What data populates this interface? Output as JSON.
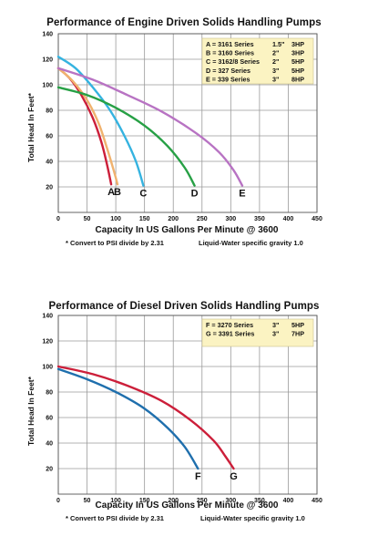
{
  "chart_data": [
    {
      "type": "line",
      "title": "Performance of Engine Driven Solids Handling Pumps",
      "xlabel": "Capacity In US Gallons Per Minute @ 3600",
      "ylabel": "Total Head In Feet*",
      "xlim": [
        0,
        450
      ],
      "ylim": [
        0,
        140
      ],
      "x_ticks": [
        "0",
        "50",
        "100",
        "150",
        "200",
        "250",
        "300",
        "350",
        "400",
        "450"
      ],
      "y_ticks": [
        "20",
        "40",
        "60",
        "80",
        "100",
        "120",
        "140"
      ],
      "grid": true,
      "legend_position": "top-right",
      "legend": [
        {
          "letter": "A",
          "series": "3161 Series",
          "size": "1.5\"",
          "hp": "3HP"
        },
        {
          "letter": "B",
          "series": "3160 Series",
          "size": "2\"",
          "hp": "3HP"
        },
        {
          "letter": "C",
          "series": "3162/8 Series",
          "size": "2\"",
          "hp": "5HP"
        },
        {
          "letter": "D",
          "series": "327 Series",
          "size": "3\"",
          "hp": "5HP"
        },
        {
          "letter": "E",
          "series": "339 Series",
          "size": "3\"",
          "hp": "8HP"
        }
      ],
      "series": [
        {
          "name": "A",
          "color": "#cc1f3a",
          "points": [
            [
              0,
              113
            ],
            [
              20,
              105
            ],
            [
              40,
              92
            ],
            [
              60,
              74
            ],
            [
              75,
              55
            ],
            [
              85,
              37
            ],
            [
              92,
              22
            ]
          ]
        },
        {
          "name": "B",
          "color": "#f0b26e",
          "points": [
            [
              0,
              113
            ],
            [
              25,
              103
            ],
            [
              50,
              88
            ],
            [
              70,
              70
            ],
            [
              85,
              50
            ],
            [
              97,
              32
            ],
            [
              103,
              22
            ]
          ]
        },
        {
          "name": "C",
          "color": "#35b3e0",
          "points": [
            [
              0,
              122
            ],
            [
              30,
              113
            ],
            [
              60,
              98
            ],
            [
              90,
              80
            ],
            [
              115,
              60
            ],
            [
              135,
              40
            ],
            [
              148,
              21
            ]
          ]
        },
        {
          "name": "D",
          "color": "#27a045",
          "points": [
            [
              0,
              98
            ],
            [
              50,
              92
            ],
            [
              100,
              82
            ],
            [
              150,
              68
            ],
            [
              190,
              52
            ],
            [
              220,
              35
            ],
            [
              237,
              21
            ]
          ]
        },
        {
          "name": "E",
          "color": "#b873c3",
          "points": [
            [
              0,
              113
            ],
            [
              60,
              104
            ],
            [
              120,
              92
            ],
            [
              180,
              79
            ],
            [
              240,
              62
            ],
            [
              280,
              47
            ],
            [
              305,
              33
            ],
            [
              320,
              21
            ]
          ]
        }
      ],
      "curve_labels": [
        "A",
        "B",
        "C",
        "D",
        "E"
      ],
      "footnotes": [
        "* Convert to PSI divide by 2.31",
        "Liquid-Water specific gravity 1.0"
      ]
    },
    {
      "type": "line",
      "title": "Performance of Diesel Driven Solids Handling Pumps",
      "xlabel": "Capacity In US Gallons Per Minute @ 3600",
      "ylabel": "Total Head In Feet*",
      "xlim": [
        0,
        450
      ],
      "ylim": [
        0,
        140
      ],
      "x_ticks": [
        "0",
        "50",
        "100",
        "150",
        "200",
        "250",
        "300",
        "350",
        "400",
        "450"
      ],
      "y_ticks": [
        "20",
        "40",
        "60",
        "80",
        "100",
        "120",
        "140"
      ],
      "grid": true,
      "legend_position": "top-right",
      "legend": [
        {
          "letter": "F",
          "series": "3270 Series",
          "size": "3\"",
          "hp": "5HP"
        },
        {
          "letter": "G",
          "series": "3391 Series",
          "size": "3\"",
          "hp": "7HP"
        }
      ],
      "series": [
        {
          "name": "F",
          "color": "#1f6fad",
          "points": [
            [
              0,
              98
            ],
            [
              50,
              90
            ],
            [
              100,
              80
            ],
            [
              150,
              67
            ],
            [
              190,
              52
            ],
            [
              220,
              37
            ],
            [
              243,
              20
            ]
          ]
        },
        {
          "name": "G",
          "color": "#cc1f3a",
          "points": [
            [
              0,
              100
            ],
            [
              60,
              94
            ],
            [
              120,
              85
            ],
            [
              180,
              73
            ],
            [
              230,
              58
            ],
            [
              270,
              42
            ],
            [
              290,
              30
            ],
            [
              305,
              20
            ]
          ]
        }
      ],
      "curve_labels": [
        "F",
        "G"
      ],
      "footnotes": [
        "* Convert to PSI divide by 2.31",
        "Liquid-Water specific gravity 1.0"
      ]
    }
  ]
}
